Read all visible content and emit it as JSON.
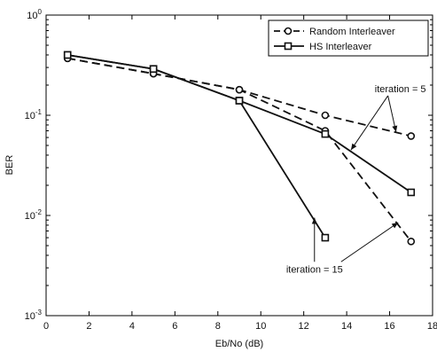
{
  "chart_data": {
    "type": "line",
    "title": "",
    "xlabel": "Eb/No (dB)",
    "ylabel": "BER",
    "xlim": [
      0,
      18
    ],
    "ylim": [
      0.001,
      1
    ],
    "yscale": "log",
    "grid": false,
    "legend_position": "top-right",
    "x_ticks": [
      "0",
      "2",
      "4",
      "6",
      "8",
      "10",
      "12",
      "14",
      "16",
      "18"
    ],
    "y_ticks": [
      {
        "base": "10",
        "exp": "-3"
      },
      {
        "base": "10",
        "exp": "-2"
      },
      {
        "base": "10",
        "exp": "-1"
      },
      {
        "base": "10",
        "exp": "0"
      }
    ],
    "series": [
      {
        "name": "Random Interleaver",
        "style": "dashed",
        "marker": "circle",
        "iteration": "5",
        "x": [
          1,
          5,
          9,
          13,
          17
        ],
        "y": [
          0.37,
          0.26,
          0.18,
          0.1,
          0.062
        ]
      },
      {
        "name": "Random Interleaver",
        "style": "dashed",
        "marker": "circle",
        "iteration": "15",
        "x": [
          1,
          5,
          9,
          13,
          17
        ],
        "y": [
          0.37,
          0.26,
          0.18,
          0.07,
          0.0055
        ]
      },
      {
        "name": "HS Interleaver",
        "style": "solid",
        "marker": "square",
        "iteration": "5",
        "x": [
          1,
          5,
          9,
          13,
          17
        ],
        "y": [
          0.4,
          0.29,
          0.14,
          0.065,
          0.017
        ]
      },
      {
        "name": "HS Interleaver",
        "style": "solid",
        "marker": "square",
        "iteration": "15",
        "x": [
          1,
          5,
          9,
          13
        ],
        "y": [
          0.4,
          0.29,
          0.14,
          0.006
        ]
      }
    ],
    "legend": [
      {
        "label": "Random Interleaver",
        "style": "dashed",
        "marker": "circle"
      },
      {
        "label": "HS Interleaver",
        "style": "solid",
        "marker": "square"
      }
    ],
    "annotations": [
      {
        "text": "iteration = 5",
        "anchor": [
          16.5,
          0.17
        ],
        "arrows_to": [
          [
            16.3,
            0.068
          ],
          [
            14.2,
            0.045
          ]
        ]
      },
      {
        "text": "iteration = 15",
        "anchor": [
          12.5,
          0.0027
        ],
        "arrows_to": [
          [
            12.5,
            0.0095
          ],
          [
            16.4,
            0.0085
          ]
        ]
      }
    ]
  }
}
